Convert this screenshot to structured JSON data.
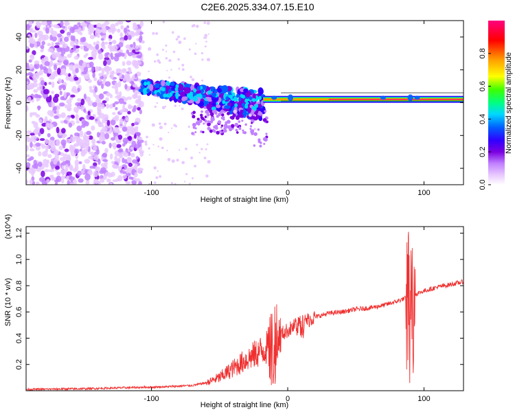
{
  "title": "C2E6.2025.334.07.15.E10",
  "chart_data": [
    {
      "type": "heatmap",
      "panel": "spectrogram",
      "xlabel": "Height of straight line (km)",
      "ylabel": "Frequency (Hz)",
      "xlim": [
        -192,
        129
      ],
      "ylim": [
        -50,
        50
      ],
      "xticks": [
        -100,
        0,
        100
      ],
      "yticks": [
        -40,
        -20,
        0,
        20,
        40
      ],
      "colorbar": {
        "label": "Normalized spectral amplitude",
        "range": [
          0,
          1
        ],
        "ticks": [
          0.0,
          0.2,
          0.4,
          0.6,
          0.8
        ],
        "colors": [
          "#ffffff",
          "#e8c8ff",
          "#c080ff",
          "#7a00e0",
          "#3000ff",
          "#0060ff",
          "#00d8ff",
          "#00ff80",
          "#40ff00",
          "#ffff00",
          "#ffa000",
          "#ff0000",
          "#ff0080"
        ]
      },
      "regions": [
        {
          "name": "scattered noise",
          "x_range": [
            -192,
            -107
          ],
          "freq_range": [
            -50,
            50
          ],
          "amplitude": "low-moderate"
        },
        {
          "name": "descending band",
          "x_range": [
            -107,
            -18
          ],
          "freq_start": 10,
          "freq_end": -10,
          "amplitude": "moderate-high"
        },
        {
          "name": "steady tone",
          "x_range": [
            -18,
            129
          ],
          "freq": 2,
          "amplitude": "high"
        }
      ]
    },
    {
      "type": "line",
      "panel": "snr",
      "xlabel": "Height of straight line (km)",
      "ylabel": "SNR (10 * v/v)",
      "y_multiplier": "(x10^4)",
      "xlim": [
        -192,
        129
      ],
      "ylim": [
        0,
        1.25
      ],
      "xticks": [
        -100,
        0,
        100
      ],
      "yticks": [
        0.2,
        0.4,
        0.6,
        0.8,
        1.0,
        1.2
      ],
      "color": "#f03030",
      "x": [
        -192,
        -150,
        -110,
        -90,
        -70,
        -60,
        -50,
        -40,
        -30,
        -20,
        -15,
        -10,
        -5,
        0,
        10,
        20,
        30,
        40,
        50,
        60,
        70,
        80,
        85,
        90,
        95,
        100,
        110,
        120,
        129
      ],
      "y": [
        0.01,
        0.015,
        0.025,
        0.03,
        0.04,
        0.06,
        0.1,
        0.17,
        0.24,
        0.3,
        0.33,
        0.37,
        0.43,
        0.46,
        0.52,
        0.56,
        0.59,
        0.6,
        0.62,
        0.63,
        0.65,
        0.68,
        0.7,
        0.72,
        0.74,
        0.76,
        0.79,
        0.81,
        0.83
      ],
      "spikes": [
        {
          "x": -11,
          "low": 0.02,
          "high": 0.66
        },
        {
          "x": 9,
          "low": 0.4,
          "high": 0.58
        },
        {
          "x": 90,
          "low": 0.04,
          "high": 1.25
        }
      ]
    }
  ]
}
